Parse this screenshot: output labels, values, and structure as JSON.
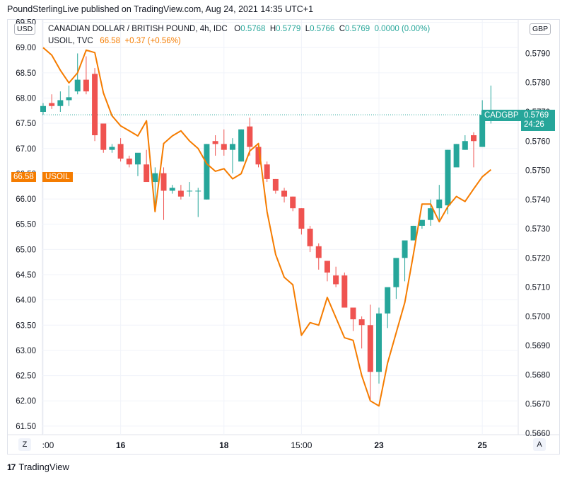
{
  "publisher_line": "PoundSterlingLive published on TradingView.com, Aug 24, 2021 14:35 UTC+1",
  "legend": {
    "symbol": "CANADIAN DOLLAR / BRITISH POUND, 4h, IDC",
    "o_label": "O",
    "o_value": "0.5768",
    "h_label": "H",
    "h_value": "0.5779",
    "l_label": "L",
    "l_value": "0.5766",
    "c_label": "C",
    "c_value": "0.5769",
    "change": "0.0000 (0.00%)",
    "overlay_symbol": "USOIL, TVC",
    "overlay_value": "66.58",
    "overlay_change": "+0.37 (+0.56%)"
  },
  "left_axis_badge": "USD",
  "right_axis_badge": "GBP",
  "tags": {
    "usoil_value": "66.58",
    "usoil_name": "USOIL",
    "cadgbp_name": "CADGBP",
    "cadgbp_value": "0.5769",
    "cadgbp_countdown": "24:26"
  },
  "buttons": {
    "z": "Z",
    "a": "A"
  },
  "footer_brand": "TradingView",
  "colors": {
    "up": "#26a69a",
    "down": "#ef5350",
    "oil": "#f57c00",
    "grid": "#f0f3fa"
  },
  "chart_data": {
    "type": "candlestick",
    "series_primary": "CANADIAN DOLLAR / BRITISH POUND",
    "series_overlay": "USOIL, TVC",
    "x_tick_labels": [
      ":00",
      "16",
      "18",
      "15:00",
      "23",
      "25"
    ],
    "x_tick_index": [
      0,
      9,
      21,
      30,
      39,
      51
    ],
    "y_left_ticks": [
      69.5,
      69.0,
      68.5,
      68.0,
      67.5,
      67.0,
      66.5,
      66.0,
      65.5,
      65.0,
      64.5,
      64.0,
      63.5,
      63.0,
      62.5,
      62.0,
      61.5
    ],
    "y_left_range": [
      61.33,
      69.55
    ],
    "y_right_ticks": [
      0.579,
      0.578,
      0.577,
      0.576,
      0.575,
      0.574,
      0.573,
      0.572,
      0.571,
      0.57,
      0.569,
      0.568,
      0.567,
      0.566
    ],
    "y_right_range": [
      0.56595,
      0.58015
    ],
    "last_price_line": 0.5769,
    "candles": [
      [
        0.577,
        0.5773,
        0.5769,
        0.5772
      ],
      [
        0.5773,
        0.5776,
        0.5771,
        0.5772
      ],
      [
        0.5772,
        0.5777,
        0.577,
        0.5774
      ],
      [
        0.5774,
        0.5779,
        0.5772,
        0.5775
      ],
      [
        0.5777,
        0.579,
        0.5776,
        0.5781
      ],
      [
        0.5781,
        0.5789,
        0.5776,
        0.5777
      ],
      [
        0.5783,
        0.5785,
        0.576,
        0.5762
      ],
      [
        0.5766,
        0.5766,
        0.5756,
        0.5757
      ],
      [
        0.5757,
        0.5759,
        0.5756,
        0.5758
      ],
      [
        0.5759,
        0.5761,
        0.5753,
        0.5754
      ],
      [
        0.5754,
        0.5755,
        0.5751,
        0.5752
      ],
      [
        0.5752,
        0.5755,
        0.5748,
        0.5756
      ],
      [
        0.5752,
        0.5757,
        0.5747,
        0.5746
      ],
      [
        0.5746,
        0.5751,
        0.5736,
        0.5749
      ],
      [
        0.5749,
        0.5751,
        0.5733,
        0.5743
      ],
      [
        0.5743,
        0.5745,
        0.5742,
        0.5744
      ],
      [
        0.5743,
        0.5745,
        0.574,
        0.5741
      ],
      [
        0.5743,
        0.5746,
        0.5741,
        0.5743
      ],
      [
        0.5743,
        0.5744,
        0.5734,
        0.5743
      ],
      [
        0.574,
        0.5759,
        0.574,
        0.5759
      ],
      [
        0.576,
        0.5762,
        0.5755,
        0.5759
      ],
      [
        0.5759,
        0.5764,
        0.5755,
        0.5757
      ],
      [
        0.5757,
        0.5761,
        0.5749,
        0.5759
      ],
      [
        0.5753,
        0.5764,
        0.5753,
        0.5764
      ],
      [
        0.5765,
        0.5768,
        0.5755,
        0.5758
      ],
      [
        0.5758,
        0.5758,
        0.5751,
        0.5752
      ],
      [
        0.5752,
        0.5753,
        0.5746,
        0.5747
      ],
      [
        0.5747,
        0.5747,
        0.5742,
        0.5743
      ],
      [
        0.5743,
        0.5744,
        0.5739,
        0.5741
      ],
      [
        0.5741,
        0.5741,
        0.5736,
        0.5737
      ],
      [
        0.5737,
        0.5737,
        0.5728,
        0.573
      ],
      [
        0.573,
        0.5731,
        0.5722,
        0.5724
      ],
      [
        0.5724,
        0.5725,
        0.5716,
        0.572
      ],
      [
        0.5719,
        0.5719,
        0.5712,
        0.5715
      ],
      [
        0.5714,
        0.5717,
        0.571,
        0.5711
      ],
      [
        0.5714,
        0.5715,
        0.5703,
        0.5703
      ],
      [
        0.5703,
        0.5703,
        0.5695,
        0.5699
      ],
      [
        0.5699,
        0.57,
        0.5689,
        0.5697
      ],
      [
        0.5697,
        0.5704,
        0.5671,
        0.5681
      ],
      [
        0.5681,
        0.5703,
        0.5677,
        0.5701
      ],
      [
        0.5701,
        0.5709,
        0.5696,
        0.571
      ],
      [
        0.571,
        0.5719,
        0.5706,
        0.572
      ],
      [
        0.572,
        0.5725,
        0.5712,
        0.5726
      ],
      [
        0.5726,
        0.5731,
        0.5727,
        0.5731
      ],
      [
        0.5731,
        0.5733,
        0.573,
        0.5733
      ],
      [
        0.5733,
        0.574,
        0.5731,
        0.5737
      ],
      [
        0.5737,
        0.5745,
        0.5733,
        0.574
      ],
      [
        0.5738,
        0.5757,
        0.5735,
        0.5757
      ],
      [
        0.5751,
        0.5759,
        0.5757,
        0.5759
      ],
      [
        0.5757,
        0.5762,
        0.5757,
        0.576
      ],
      [
        0.5762,
        0.5763,
        0.5751,
        0.576
      ],
      [
        0.5758,
        0.5774,
        0.5758,
        0.5769
      ],
      [
        0.5768,
        0.5779,
        0.5766,
        0.5769
      ]
    ],
    "usoil": [
      69.0,
      68.85,
      68.55,
      68.3,
      68.5,
      68.95,
      68.9,
      68.1,
      67.65,
      67.45,
      67.35,
      67.25,
      67.55,
      65.75,
      67.1,
      67.25,
      67.35,
      67.15,
      67.0,
      66.7,
      66.55,
      66.6,
      66.4,
      66.5,
      66.95,
      67.1,
      65.75,
      64.9,
      64.45,
      64.3,
      63.3,
      63.55,
      63.5,
      64.05,
      63.65,
      63.25,
      63.2,
      62.5,
      62.0,
      61.9,
      62.75,
      63.35,
      63.95,
      64.9,
      65.9,
      65.9,
      65.55,
      65.85,
      66.05,
      65.95,
      66.2,
      66.44,
      66.58
    ]
  }
}
